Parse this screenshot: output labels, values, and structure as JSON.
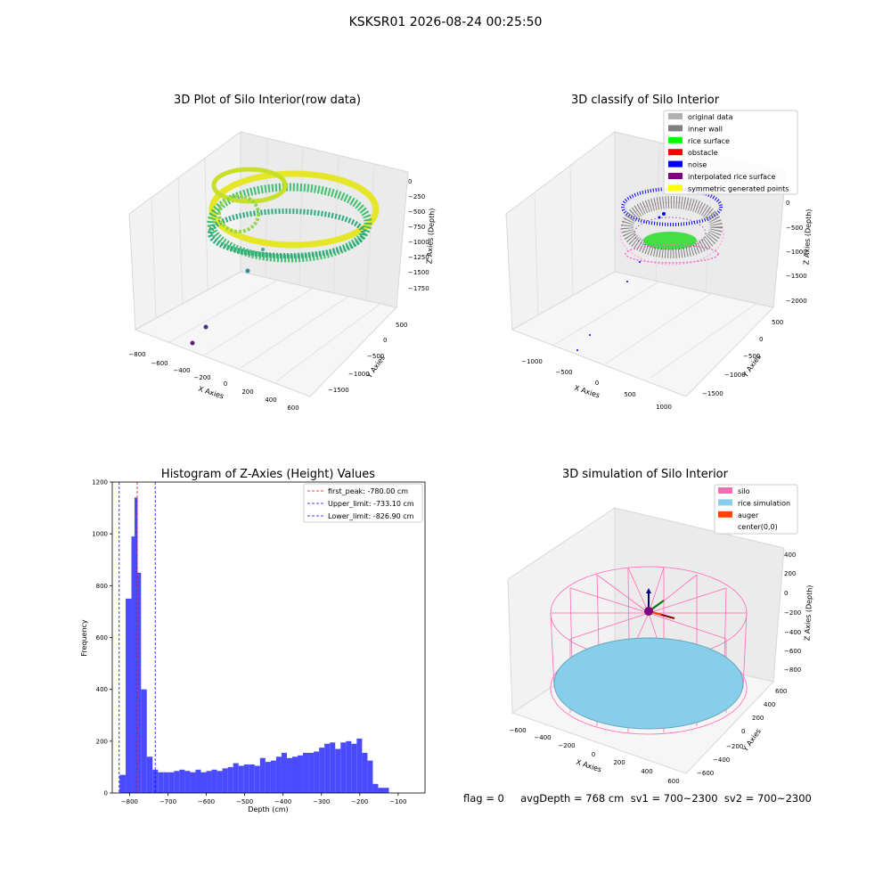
{
  "suptitle": "KSKSR01 2026-08-24 00:25:50",
  "footer": "flag = 0     avgDepth = 768 cm  sv1 = 700~2300  sv2 = 700~2300",
  "panels": {
    "raw": {
      "title": "3D Plot of Silo Interior(row data)",
      "xlabel": "X Axies",
      "ylabel": "Y Axies",
      "zlabel": "Z Axies (Depth)",
      "xticks": [
        "−800",
        "−600",
        "−400",
        "−200",
        "0",
        "200",
        "400",
        "600"
      ],
      "yticks": [
        "−1500",
        "−1000",
        "−500",
        "0",
        "500"
      ],
      "zticks": [
        "0",
        "−250",
        "−500",
        "−750",
        "−1000",
        "−1250",
        "−1500",
        "−1750"
      ]
    },
    "classify": {
      "title": "3D classify of Silo Interior",
      "xlabel": "X Axies",
      "ylabel": "Y Axies",
      "zlabel": "Z Axies (Depth)",
      "xticks": [
        "−1000",
        "−500",
        "0",
        "500",
        "1000"
      ],
      "yticks": [
        "−1500",
        "−1000",
        "−500",
        "0",
        "500"
      ],
      "zticks": [
        "0",
        "−500",
        "−1000",
        "−1500",
        "−2000"
      ],
      "legend": [
        {
          "label": "original data",
          "color": "#b0b0b0"
        },
        {
          "label": "inner wall",
          "color": "#808080"
        },
        {
          "label": "rice surface",
          "color": "#00ff00"
        },
        {
          "label": "obstacle",
          "color": "#ff0000"
        },
        {
          "label": "noise",
          "color": "#0000ff"
        },
        {
          "label": "interpolated rice surface",
          "color": "#800080"
        },
        {
          "label": "symmetric generated points",
          "color": "#ffff00"
        }
      ]
    },
    "simulation": {
      "title": "3D simulation of Silo Interior",
      "xlabel": "X Axies",
      "ylabel": "Y Axies",
      "zlabel": "Z Axies (Depth)",
      "xticks": [
        "−600",
        "−400",
        "−200",
        "0",
        "200",
        "400",
        "600"
      ],
      "yticks": [
        "−600",
        "−400",
        "−200",
        "0",
        "200",
        "400",
        "600"
      ],
      "zticks": [
        "400",
        "200",
        "0",
        "−200",
        "−400",
        "−600",
        "−800"
      ],
      "legend": [
        {
          "label": "silo",
          "color": "#ff69b4"
        },
        {
          "label": "rice simulation",
          "color": "#87ceeb"
        },
        {
          "label": "auger",
          "color": "#ff4500"
        },
        {
          "label": "center(0,0)",
          "color": ""
        }
      ]
    }
  },
  "chart_data": {
    "type": "bar",
    "title": "Histogram of Z-Axies (Height) Values",
    "xlabel": "Depth (cm)",
    "ylabel": "Frequency",
    "xlim": [
      -845,
      -30
    ],
    "ylim": [
      0,
      1200
    ],
    "xticks": [
      -800,
      -700,
      -600,
      -500,
      -400,
      -300,
      -200,
      -100
    ],
    "xtick_labels": [
      "−800",
      "−700",
      "−600",
      "−500",
      "−400",
      "−300",
      "−200",
      "−100"
    ],
    "yticks": [
      0,
      200,
      400,
      600,
      800,
      1000,
      1200
    ],
    "bar_color": "#4a4aff",
    "bins": [
      [
        -826,
        -810,
        70
      ],
      [
        -810,
        -795,
        750
      ],
      [
        -795,
        -787,
        990
      ],
      [
        -787,
        -779,
        1140
      ],
      [
        -779,
        -770,
        850
      ],
      [
        -770,
        -755,
        400
      ],
      [
        -755,
        -740,
        140
      ],
      [
        -740,
        -726,
        90
      ],
      [
        -726,
        -712,
        80
      ],
      [
        -712,
        -698,
        80
      ],
      [
        -698,
        -684,
        80
      ],
      [
        -684,
        -670,
        85
      ],
      [
        -670,
        -656,
        90
      ],
      [
        -656,
        -642,
        85
      ],
      [
        -642,
        -628,
        80
      ],
      [
        -628,
        -614,
        90
      ],
      [
        -614,
        -600,
        80
      ],
      [
        -600,
        -586,
        85
      ],
      [
        -586,
        -572,
        90
      ],
      [
        -572,
        -558,
        85
      ],
      [
        -558,
        -544,
        95
      ],
      [
        -544,
        -530,
        100
      ],
      [
        -530,
        -516,
        115
      ],
      [
        -516,
        -502,
        105
      ],
      [
        -502,
        -488,
        110
      ],
      [
        -488,
        -474,
        110
      ],
      [
        -474,
        -460,
        105
      ],
      [
        -460,
        -446,
        135
      ],
      [
        -446,
        -432,
        120
      ],
      [
        -432,
        -418,
        125
      ],
      [
        -418,
        -404,
        140
      ],
      [
        -404,
        -390,
        155
      ],
      [
        -390,
        -376,
        135
      ],
      [
        -376,
        -362,
        140
      ],
      [
        -362,
        -348,
        145
      ],
      [
        -348,
        -334,
        155
      ],
      [
        -334,
        -320,
        155
      ],
      [
        -320,
        -306,
        160
      ],
      [
        -306,
        -292,
        175
      ],
      [
        -292,
        -278,
        190
      ],
      [
        -278,
        -264,
        195
      ],
      [
        -264,
        -250,
        170
      ],
      [
        -250,
        -236,
        195
      ],
      [
        -236,
        -222,
        200
      ],
      [
        -222,
        -208,
        190
      ],
      [
        -208,
        -194,
        210
      ],
      [
        -194,
        -180,
        155
      ],
      [
        -180,
        -166,
        125
      ],
      [
        -166,
        -152,
        35
      ],
      [
        -152,
        -138,
        20
      ],
      [
        -138,
        -124,
        20
      ]
    ],
    "lines": [
      {
        "label": "first_peak: -780.00 cm",
        "x": -780.0,
        "color": "#ff0000"
      },
      {
        "label": "Upper_limit: -733.10 cm",
        "x": -733.1,
        "color": "#0000ff"
      },
      {
        "label": "Lower_limit: -826.90 cm",
        "x": -826.9,
        "color": "#0000ff"
      }
    ]
  }
}
